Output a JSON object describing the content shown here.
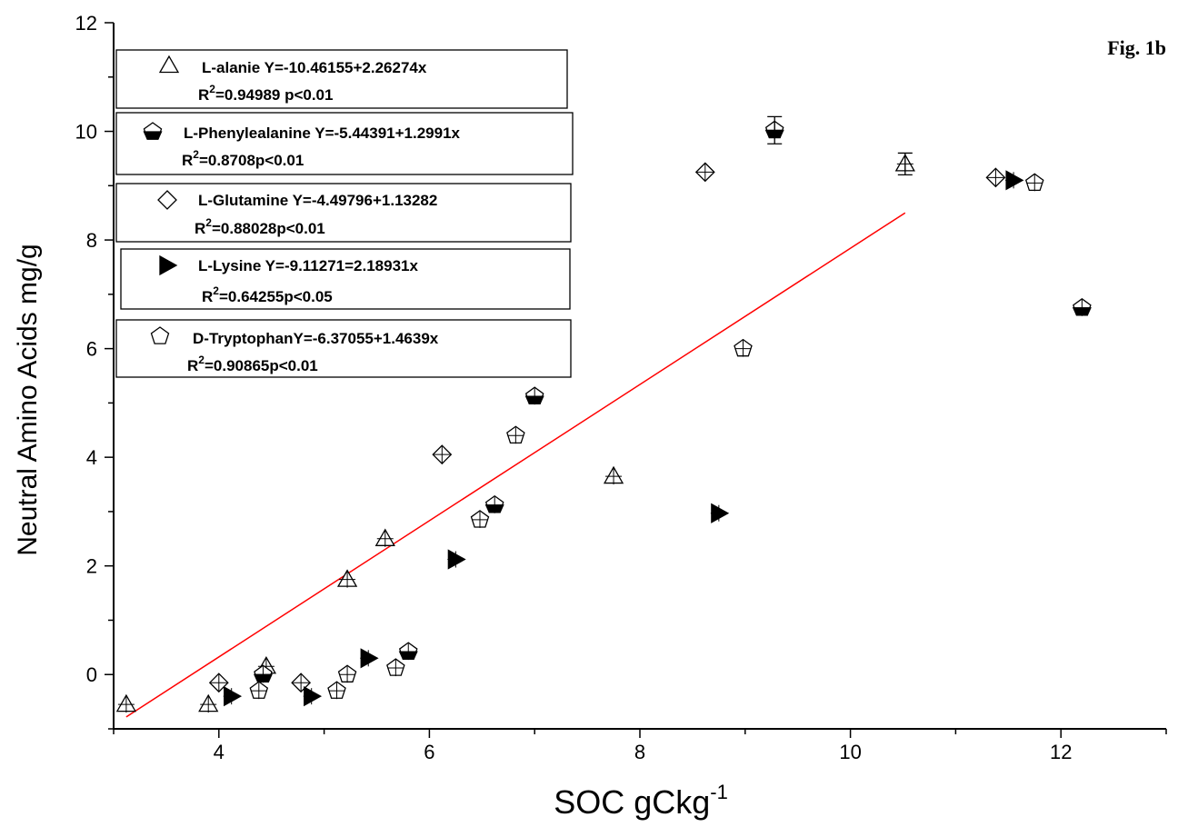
{
  "chart_data": {
    "type": "scatter",
    "figure_label": "Fig. 1b",
    "xlabel": "SOC gCkg",
    "xlabel_sup": "-1",
    "ylabel": "Neutral Amino Acids mg/g",
    "xlim": [
      3.0,
      13.0
    ],
    "ylim": [
      -1.0,
      12.0
    ],
    "xticks": [
      4,
      6,
      8,
      10,
      12
    ],
    "yticks": [
      0,
      2,
      4,
      6,
      8,
      10,
      12
    ],
    "grid": false,
    "legend_placement": "top-left",
    "series": [
      {
        "name": "L-alanie",
        "marker": "triangle",
        "equation": "L-alanie Y=-10.46155+2.26274x",
        "r2_value": "=0.94989 p<0.01",
        "x": [
          3.12,
          3.9,
          4.45,
          5.22,
          5.58,
          7.75,
          10.52
        ],
        "y": [
          -0.55,
          -0.55,
          0.15,
          1.75,
          2.5,
          3.65,
          9.4
        ]
      },
      {
        "name": "L-Phenylealanine",
        "marker": "pentagon-half-filled",
        "equation": "L-Phenylealanine Y=-5.44391+1.2991x",
        "r2_value": "=0.8708p<0.01",
        "x": [
          4.42,
          5.8,
          6.62,
          7.0,
          9.28,
          12.2
        ],
        "y": [
          0.0,
          0.42,
          3.12,
          5.12,
          10.02,
          6.75
        ]
      },
      {
        "name": "L-Glutamine",
        "marker": "diamond",
        "equation": "L-Glutamine Y=-4.49796+1.13282",
        "r2_value": "=0.88028p<0.01",
        "x": [
          4.0,
          4.78,
          6.12,
          8.62,
          11.38
        ],
        "y": [
          -0.15,
          -0.15,
          4.05,
          9.25,
          9.15
        ]
      },
      {
        "name": "L-Lysine",
        "marker": "triangle-right",
        "equation": "L-Lysine Y=-9.11271=2.18931x",
        "r2_value": "=0.64255p<0.05",
        "x": [
          4.12,
          4.88,
          5.42,
          6.25,
          8.75,
          11.55
        ],
        "y": [
          -0.4,
          -0.4,
          0.3,
          2.12,
          2.97,
          9.1
        ]
      },
      {
        "name": "D-Tryptophan",
        "marker": "pentagon",
        "equation": "D-TryptophanY=-6.37055+1.4639x",
        "r2_value": "=0.90865p<0.01",
        "x": [
          4.38,
          5.12,
          5.22,
          5.68,
          6.48,
          6.82,
          8.98,
          11.75
        ],
        "y": [
          -0.3,
          -0.3,
          0.0,
          0.12,
          2.85,
          4.4,
          6.0,
          9.05
        ]
      }
    ],
    "error_bars": [
      {
        "x": 9.28,
        "y": 10.02,
        "err": 0.25
      },
      {
        "x": 10.52,
        "y": 9.4,
        "err": 0.2
      }
    ],
    "fit_line": {
      "x": [
        3.12,
        10.52
      ],
      "y": [
        -0.78,
        8.5
      ],
      "color": "#ff0000"
    },
    "colors": {
      "axis": "#000000",
      "fit": "#ff0000",
      "marker_fill": "#000000"
    }
  }
}
